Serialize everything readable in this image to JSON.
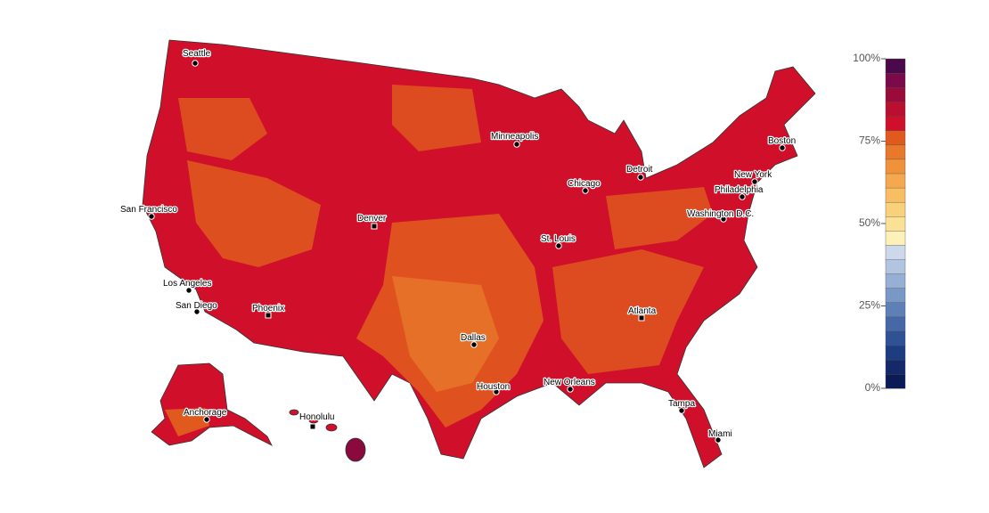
{
  "map": {
    "cities": [
      {
        "name": "Seattle"
      },
      {
        "name": "Minneapolis"
      },
      {
        "name": "Boston"
      },
      {
        "name": "Detroit"
      },
      {
        "name": "Chicago"
      },
      {
        "name": "New York"
      },
      {
        "name": "Philadelphia"
      },
      {
        "name": "Washington D.C."
      },
      {
        "name": "San Francisco"
      },
      {
        "name": "Denver"
      },
      {
        "name": "St. Louis"
      },
      {
        "name": "Los Angeles"
      },
      {
        "name": "San Diego"
      },
      {
        "name": "Phoenix"
      },
      {
        "name": "Atlanta"
      },
      {
        "name": "Dallas"
      },
      {
        "name": "Houston"
      },
      {
        "name": "New Orleans"
      },
      {
        "name": "Tampa"
      },
      {
        "name": "Anchorage"
      },
      {
        "name": "Honolulu"
      },
      {
        "name": "Miami"
      }
    ]
  },
  "legend": {
    "range": [
      0,
      100
    ],
    "ticks": [
      {
        "value": 100,
        "label": "100%"
      },
      {
        "value": 75,
        "label": "75%"
      },
      {
        "value": 50,
        "label": "50%"
      },
      {
        "value": 25,
        "label": "25%"
      },
      {
        "value": 0,
        "label": "0%"
      }
    ],
    "colors": [
      "#0b1b56",
      "#13296a",
      "#1d3d80",
      "#2f5294",
      "#4668a6",
      "#5f80b7",
      "#7a98c6",
      "#96afd4",
      "#b2c5e0",
      "#cdd9eb",
      "#fdf0b8",
      "#fbe195",
      "#f9d17a",
      "#f8be62",
      "#f5a84d",
      "#f0923a",
      "#e8782a",
      "#e05a1e",
      "#d0102a",
      "#b8102e",
      "#9a0a3a",
      "#7a0a4a",
      "#4a0a4a"
    ]
  }
}
